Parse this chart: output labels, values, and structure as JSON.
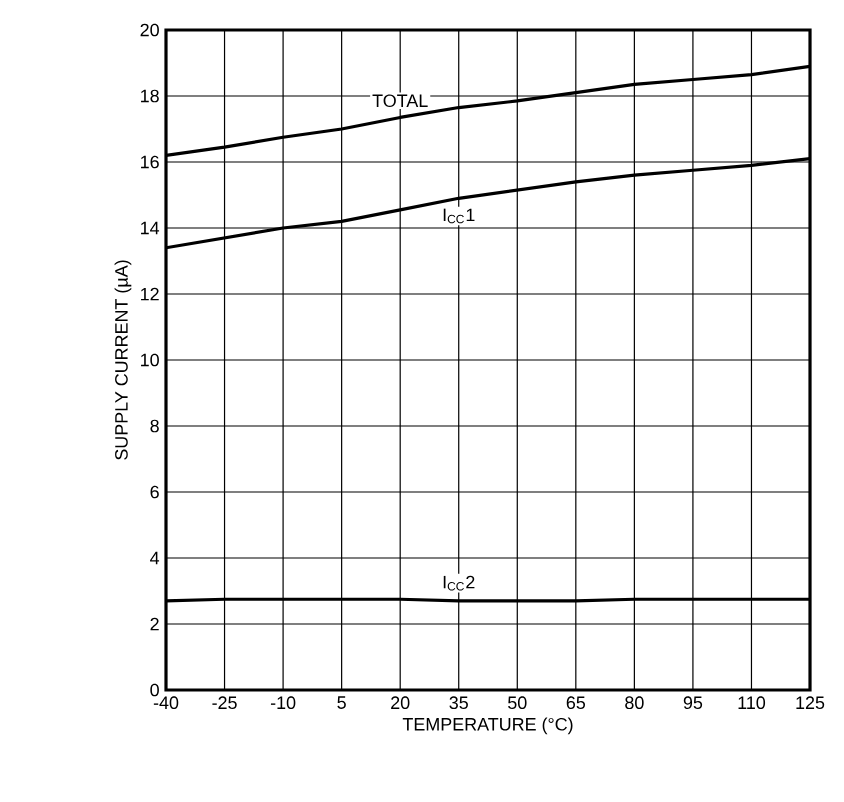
{
  "chart_data": {
    "type": "line",
    "xlabel": "TEMPERATURE (°C)",
    "ylabel": "SUPPLY CURRENT (µA)",
    "x": [
      -40,
      -25,
      -10,
      5,
      20,
      35,
      50,
      65,
      80,
      95,
      110,
      125
    ],
    "series": [
      {
        "name": "TOTAL",
        "color": "#000000",
        "values": [
          16.2,
          16.45,
          16.75,
          17.0,
          17.35,
          17.65,
          17.85,
          18.1,
          18.35,
          18.5,
          18.65,
          18.9
        ]
      },
      {
        "name": "I$_{CC}$1",
        "color": "#000000",
        "values": [
          13.4,
          13.7,
          14.0,
          14.2,
          14.55,
          14.9,
          15.15,
          15.4,
          15.6,
          15.75,
          15.9,
          16.1
        ]
      },
      {
        "name": "I$_{CC}$2",
        "color": "#000000",
        "values": [
          2.7,
          2.75,
          2.75,
          2.75,
          2.75,
          2.7,
          2.7,
          2.7,
          2.75,
          2.75,
          2.75,
          2.75
        ]
      }
    ],
    "xlim": [
      -40,
      125
    ],
    "ylim": [
      0,
      20
    ],
    "xticks": [
      -40,
      -25,
      -10,
      5,
      20,
      35,
      50,
      65,
      80,
      95,
      110,
      125
    ],
    "yticks": [
      0,
      2,
      4,
      6,
      8,
      10,
      12,
      14,
      16,
      18,
      20
    ],
    "grid": true,
    "legend": false,
    "marker": "none",
    "line_style": "solid"
  }
}
